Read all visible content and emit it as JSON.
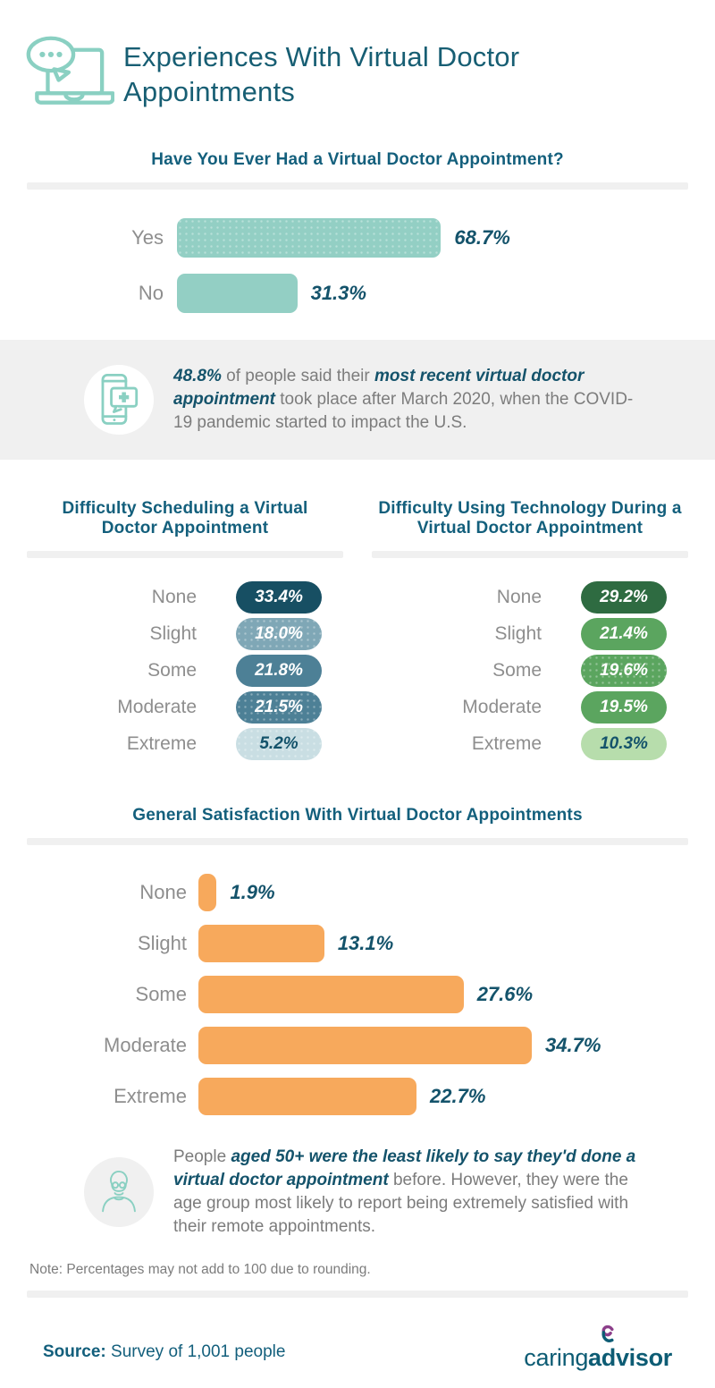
{
  "header": {
    "title": "Experiences With Virtual Doctor Appointments",
    "icon": "laptop-chat-icon"
  },
  "colors": {
    "brand_teal_dark": "#175e73",
    "heading_blue": "#135f7c",
    "value_blue": "#14536b",
    "label_gray": "#8e8e8e",
    "body_gray": "#7c7c7c",
    "band_gray": "#f0f0f0",
    "icon_teal": "#8ad0c2",
    "seafoam": "#93cfc4",
    "orange": "#f7a95c",
    "logo_purple": "#8c3f8a"
  },
  "chart_data": [
    {
      "type": "bar",
      "orientation": "horizontal",
      "title": "Have You Ever Had a Virtual Doctor Appointment?",
      "categories": [
        "Yes",
        "No"
      ],
      "values": [
        68.7,
        31.3
      ],
      "bar_color": "#93cfc4",
      "value_label_color": "#14536b",
      "xlim": [
        0,
        100
      ],
      "grid": false,
      "legend": false
    },
    {
      "type": "bar",
      "style": "equal-pill-badges",
      "title": "Difficulty Scheduling a Virtual Doctor Appointment",
      "categories": [
        "None",
        "Slight",
        "Some",
        "Moderate",
        "Extreme"
      ],
      "values": [
        33.4,
        18.0,
        21.8,
        21.5,
        5.2
      ],
      "colors": [
        "#174f63",
        "#7fa7b6",
        "#4d8096",
        "#4d8096",
        "#c9dee3"
      ],
      "value_colors": [
        "#ffffff",
        "#ffffff",
        "#ffffff",
        "#ffffff",
        "#14536b"
      ],
      "textures": [
        null,
        "dots",
        null,
        "dots",
        "dots"
      ],
      "xlim": [
        0,
        100
      ],
      "grid": false,
      "legend": false
    },
    {
      "type": "bar",
      "style": "equal-pill-badges",
      "title": "Difficulty Using Technology During a Virtual Doctor Appointment",
      "categories": [
        "None",
        "Slight",
        "Some",
        "Moderate",
        "Extreme"
      ],
      "values": [
        29.2,
        21.4,
        19.6,
        19.5,
        10.3
      ],
      "colors": [
        "#2e6b41",
        "#5ba55f",
        "#5ba55f",
        "#5ba55f",
        "#b7ddac"
      ],
      "value_colors": [
        "#ffffff",
        "#ffffff",
        "#ffffff",
        "#ffffff",
        "#14536b"
      ],
      "textures": [
        null,
        null,
        "dots",
        null,
        null
      ],
      "xlim": [
        0,
        100
      ],
      "grid": false,
      "legend": false
    },
    {
      "type": "bar",
      "orientation": "horizontal",
      "title": "General Satisfaction With Virtual Doctor Appointments",
      "categories": [
        "None",
        "Slight",
        "Some",
        "Moderate",
        "Extreme"
      ],
      "values": [
        1.9,
        13.1,
        27.6,
        34.7,
        22.7
      ],
      "bar_color": "#f7a95c",
      "value_label_color": "#14536b",
      "xlim": [
        0,
        100
      ],
      "grid": false,
      "legend": false
    }
  ],
  "callout1": {
    "icon": "phone-medical-icon",
    "segments": [
      {
        "text": "48.8%",
        "em": true
      },
      {
        "text": " of people said their ",
        "em": false
      },
      {
        "text": "most recent virtual doctor appointment",
        "em": true
      },
      {
        "text": " took place after March 2020, when the COVID-19 pandemic started to impact the U.S.",
        "em": false
      }
    ]
  },
  "callout2": {
    "icon": "senior-person-icon",
    "segments": [
      {
        "text": "People ",
        "em": false
      },
      {
        "text": "aged 50+ were the least likely to say they'd done a virtual doctor appointment",
        "em": true
      },
      {
        "text": " before. However, they were the age group most likely to report being extremely satisfied with their remote appointments.",
        "em": false
      }
    ]
  },
  "note": "Note: Percentages may not add to 100 due to rounding.",
  "footer": {
    "source_label": "Source:",
    "source_text": " Survey of 1,001 people",
    "logo": {
      "part1": "caring",
      "part2": "advisor",
      "mark": "heart-swirl-icon"
    }
  }
}
